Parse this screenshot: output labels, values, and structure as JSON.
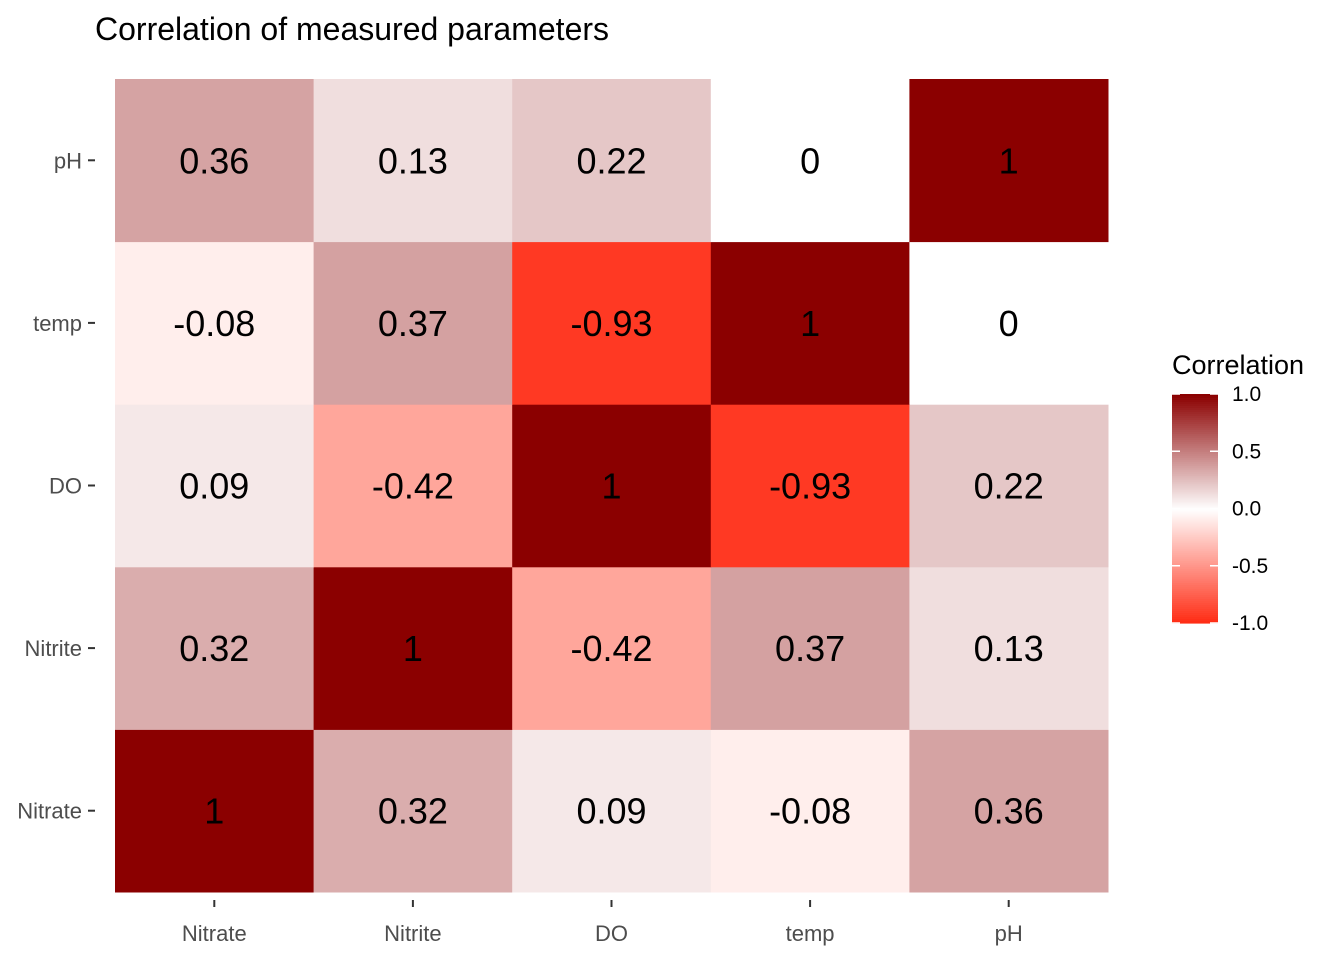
{
  "chart_data": {
    "type": "heatmap",
    "title": "Correlation of measured parameters",
    "x_categories": [
      "Nitrate",
      "Nitrite",
      "DO",
      "temp",
      "pH"
    ],
    "y_categories": [
      "Nitrate",
      "Nitrite",
      "DO",
      "temp",
      "pH"
    ],
    "values": [
      [
        1,
        0.32,
        0.09,
        -0.08,
        0.36
      ],
      [
        0.32,
        1,
        -0.42,
        0.37,
        0.13
      ],
      [
        0.09,
        -0.42,
        1,
        -0.93,
        0.22
      ],
      [
        -0.08,
        0.37,
        -0.93,
        1,
        0
      ],
      [
        0.36,
        0.13,
        0.22,
        0,
        1
      ]
    ],
    "value_labels": [
      [
        "1",
        "0.32",
        "0.09",
        "-0.08",
        "0.36"
      ],
      [
        "0.32",
        "1",
        "-0.42",
        "0.37",
        "0.13"
      ],
      [
        "0.09",
        "-0.42",
        "1",
        "-0.93",
        "0.22"
      ],
      [
        "-0.08",
        "0.37",
        "-0.93",
        "1",
        "0"
      ],
      [
        "0.36",
        "0.13",
        "0.22",
        "0",
        "1"
      ]
    ],
    "legend": {
      "title": "Correlation",
      "placement": "right",
      "range": [
        -1,
        1
      ],
      "ticks": [
        1.0,
        0.5,
        0.0,
        -0.5,
        -1.0
      ],
      "tick_labels": [
        "1.0",
        "0.5",
        "0.0",
        "-0.5",
        "-1.0"
      ]
    },
    "colors": {
      "low": "#ff2a12",
      "mid": "#ffffff",
      "high": "#8b0000"
    }
  }
}
